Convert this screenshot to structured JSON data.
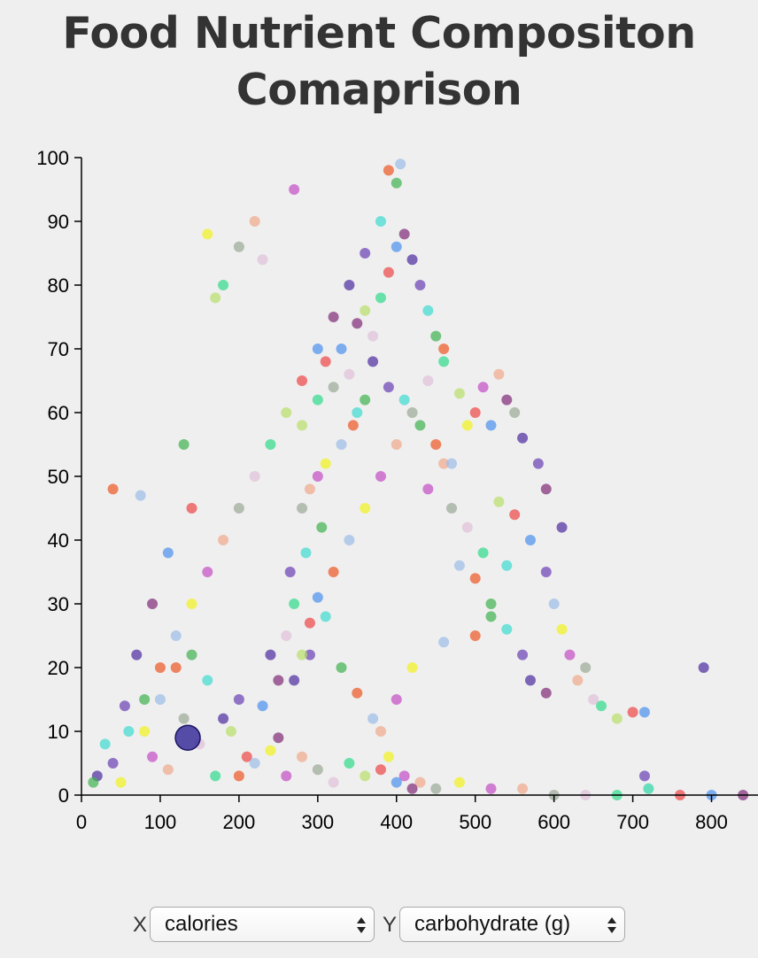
{
  "page": {
    "title": "Food Nutrient Compositon Comaprison"
  },
  "controls": {
    "x_label": "X",
    "x_selected": "calories",
    "y_label": "Y",
    "y_selected": "carbohydrate (g)"
  },
  "colors": {
    "palette": [
      "#4b2aa0",
      "#6a3fb5",
      "#3cdcd0",
      "#3fb24f",
      "#ee5522",
      "#9bbce8",
      "#f2f21e",
      "#c34bc4",
      "#f0a88a",
      "#9aa896",
      "#e0c0d8",
      "#2fdc8a",
      "#b8e06a",
      "#ee4444",
      "#4a90ee",
      "#7f2a77"
    ],
    "highlight": "#3a2f9a"
  },
  "chart_data": {
    "type": "scatter",
    "xlabel": "",
    "ylabel": "",
    "xlim": [
      0,
      850
    ],
    "ylim": [
      0,
      100
    ],
    "x_ticks": [
      0,
      100,
      200,
      300,
      400,
      500,
      600,
      700,
      800
    ],
    "y_ticks": [
      0,
      10,
      20,
      30,
      40,
      50,
      60,
      70,
      80,
      90,
      100
    ],
    "highlighted_point": {
      "x": 135,
      "y": 9
    },
    "points": [
      [
        20,
        3
      ],
      [
        40,
        5
      ],
      [
        60,
        10
      ],
      [
        80,
        15
      ],
      [
        100,
        20
      ],
      [
        120,
        25
      ],
      [
        140,
        30
      ],
      [
        160,
        35
      ],
      [
        180,
        40
      ],
      [
        200,
        45
      ],
      [
        220,
        50
      ],
      [
        240,
        55
      ],
      [
        260,
        60
      ],
      [
        280,
        65
      ],
      [
        300,
        70
      ],
      [
        320,
        75
      ],
      [
        340,
        80
      ],
      [
        360,
        85
      ],
      [
        380,
        90
      ],
      [
        400,
        96
      ],
      [
        390,
        98
      ],
      [
        405,
        99
      ],
      [
        50,
        2
      ],
      [
        90,
        6
      ],
      [
        110,
        4
      ],
      [
        130,
        12
      ],
      [
        150,
        8
      ],
      [
        170,
        3
      ],
      [
        190,
        10
      ],
      [
        210,
        6
      ],
      [
        230,
        14
      ],
      [
        250,
        9
      ],
      [
        270,
        18
      ],
      [
        290,
        22
      ],
      [
        310,
        28
      ],
      [
        330,
        20
      ],
      [
        350,
        16
      ],
      [
        370,
        12
      ],
      [
        390,
        6
      ],
      [
        410,
        3
      ],
      [
        430,
        2
      ],
      [
        450,
        1
      ],
      [
        260,
        25
      ],
      [
        270,
        30
      ],
      [
        280,
        22
      ],
      [
        290,
        27
      ],
      [
        300,
        31
      ],
      [
        250,
        18
      ],
      [
        240,
        22
      ],
      [
        265,
        35
      ],
      [
        285,
        38
      ],
      [
        305,
        42
      ],
      [
        320,
        35
      ],
      [
        340,
        40
      ],
      [
        360,
        45
      ],
      [
        380,
        50
      ],
      [
        400,
        55
      ],
      [
        420,
        60
      ],
      [
        440,
        65
      ],
      [
        460,
        68
      ],
      [
        480,
        63
      ],
      [
        500,
        60
      ],
      [
        520,
        58
      ],
      [
        540,
        62
      ],
      [
        560,
        56
      ],
      [
        580,
        52
      ],
      [
        350,
        60
      ],
      [
        360,
        62
      ],
      [
        345,
        58
      ],
      [
        330,
        55
      ],
      [
        310,
        52
      ],
      [
        300,
        50
      ],
      [
        290,
        48
      ],
      [
        280,
        45
      ],
      [
        370,
        72
      ],
      [
        380,
        78
      ],
      [
        360,
        76
      ],
      [
        390,
        82
      ],
      [
        400,
        86
      ],
      [
        410,
        88
      ],
      [
        420,
        84
      ],
      [
        430,
        80
      ],
      [
        440,
        76
      ],
      [
        450,
        72
      ],
      [
        460,
        70
      ],
      [
        600,
        30
      ],
      [
        610,
        26
      ],
      [
        620,
        22
      ],
      [
        630,
        18
      ],
      [
        640,
        20
      ],
      [
        650,
        15
      ],
      [
        660,
        14
      ],
      [
        680,
        12
      ],
      [
        700,
        13
      ],
      [
        715,
        13
      ],
      [
        590,
        16
      ],
      [
        570,
        18
      ],
      [
        560,
        22
      ],
      [
        540,
        26
      ],
      [
        520,
        30
      ],
      [
        500,
        34
      ],
      [
        480,
        36
      ],
      [
        480,
        2
      ],
      [
        520,
        1
      ],
      [
        560,
        1
      ],
      [
        600,
        0
      ],
      [
        640,
        0
      ],
      [
        680,
        0
      ],
      [
        720,
        1
      ],
      [
        760,
        0
      ],
      [
        800,
        0
      ],
      [
        840,
        0
      ],
      [
        790,
        20
      ],
      [
        715,
        3
      ],
      [
        720,
        1
      ],
      [
        130,
        55
      ],
      [
        40,
        48
      ],
      [
        75,
        47
      ],
      [
        160,
        88
      ],
      [
        270,
        95
      ],
      [
        220,
        90
      ],
      [
        200,
        86
      ],
      [
        230,
        84
      ],
      [
        180,
        80
      ],
      [
        170,
        78
      ],
      [
        140,
        45
      ],
      [
        110,
        38
      ],
      [
        90,
        30
      ],
      [
        70,
        22
      ],
      [
        55,
        14
      ],
      [
        30,
        8
      ],
      [
        15,
        2
      ],
      [
        200,
        3
      ],
      [
        220,
        5
      ],
      [
        240,
        7
      ],
      [
        260,
        3
      ],
      [
        280,
        6
      ],
      [
        300,
        4
      ],
      [
        320,
        2
      ],
      [
        340,
        5
      ],
      [
        360,
        3
      ],
      [
        380,
        4
      ],
      [
        400,
        2
      ],
      [
        420,
        1
      ],
      [
        180,
        12
      ],
      [
        200,
        15
      ],
      [
        160,
        18
      ],
      [
        140,
        22
      ],
      [
        120,
        20
      ],
      [
        100,
        15
      ],
      [
        80,
        10
      ],
      [
        440,
        48
      ],
      [
        460,
        52
      ],
      [
        470,
        45
      ],
      [
        490,
        42
      ],
      [
        510,
        38
      ],
      [
        530,
        46
      ],
      [
        550,
        44
      ],
      [
        570,
        40
      ],
      [
        590,
        48
      ],
      [
        610,
        42
      ],
      [
        590,
        35
      ],
      [
        540,
        36
      ],
      [
        520,
        28
      ],
      [
        500,
        25
      ],
      [
        460,
        24
      ],
      [
        420,
        20
      ],
      [
        400,
        15
      ],
      [
        380,
        10
      ],
      [
        320,
        64
      ],
      [
        340,
        66
      ],
      [
        300,
        62
      ],
      [
        280,
        58
      ],
      [
        310,
        68
      ],
      [
        330,
        70
      ],
      [
        350,
        74
      ],
      [
        370,
        68
      ],
      [
        390,
        64
      ],
      [
        410,
        62
      ],
      [
        430,
        58
      ],
      [
        450,
        55
      ],
      [
        470,
        52
      ],
      [
        490,
        58
      ],
      [
        510,
        64
      ],
      [
        530,
        66
      ],
      [
        550,
        60
      ]
    ]
  }
}
